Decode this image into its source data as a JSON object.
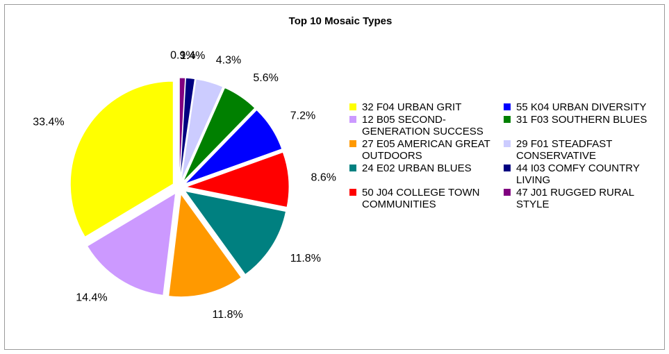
{
  "chart_data": {
    "type": "pie",
    "title": "Top 10 Mosaic Types",
    "categories": [
      "32 F04 URBAN GRIT",
      "12 B05 SECOND-GENERATION SUCCESS",
      "27 E05 AMERICAN GREAT OUTDOORS",
      "24 E02 URBAN BLUES",
      "50 J04 COLLEGE TOWN COMMUNITIES",
      "55 K04 URBAN DIVERSITY",
      "31 F03 SOUTHERN BLUES",
      "29 F01 STEADFAST CONSERVATIVE",
      "44 I03 COMFY COUNTRY LIVING",
      "47 J01 RUGGED RURAL STYLE"
    ],
    "values": [
      33.4,
      14.4,
      11.8,
      11.8,
      8.6,
      7.2,
      5.6,
      4.3,
      1.4,
      0.9
    ],
    "value_labels": [
      "33.4%",
      "14.4%",
      "11.8%",
      "11.8%",
      "8.6%",
      "7.2%",
      "5.6%",
      "4.3%",
      "1.4%",
      "0.9%"
    ],
    "colors": [
      "#ffff00",
      "#cc99ff",
      "#ff9900",
      "#008080",
      "#ff0000",
      "#0000ff",
      "#008000",
      "#ccccff",
      "#000080",
      "#800080"
    ],
    "legend": "right"
  }
}
